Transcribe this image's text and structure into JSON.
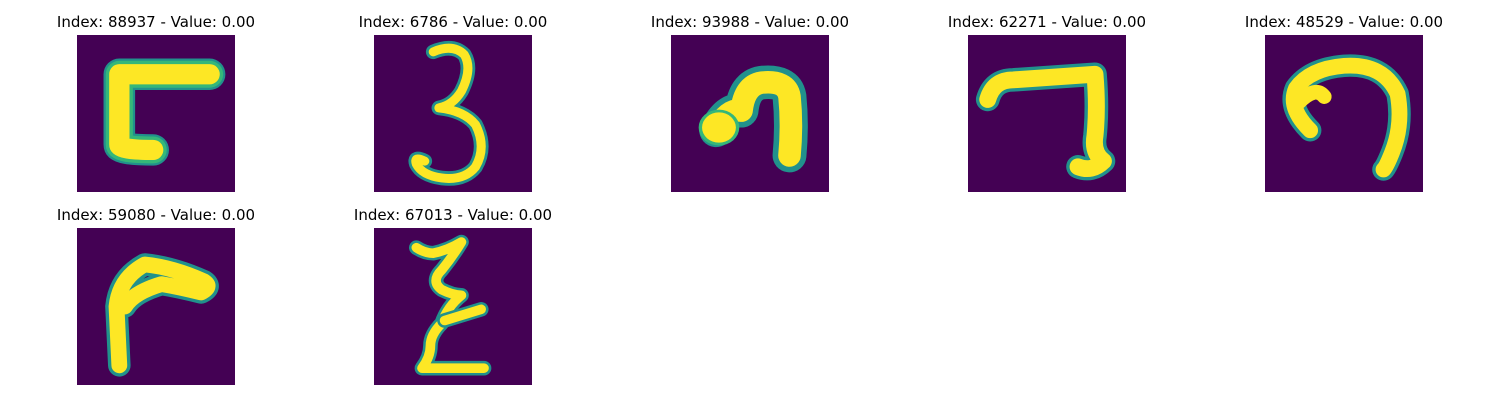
{
  "figure": {
    "panels": [
      {
        "title": "Index: 88937 - Value: 0.00",
        "glyph": "square-hook"
      },
      {
        "title": "Index: 6786 - Value: 0.00",
        "glyph": "digit-three"
      },
      {
        "title": "Index: 93988 - Value: 0.00",
        "glyph": "arch-blob"
      },
      {
        "title": "Index: 62271 - Value: 0.00",
        "glyph": "seven-stroke"
      },
      {
        "title": "Index: 48529 - Value: 0.00",
        "glyph": "round-hook"
      },
      {
        "title": "Index: 59080 - Value: 0.00",
        "glyph": "gamma-stroke"
      },
      {
        "title": "Index: 67013 - Value: 0.00",
        "glyph": "z-squiggle"
      }
    ],
    "colors": {
      "background": "#440154",
      "stroke": "#fde725",
      "halo": "#35b779",
      "halo_outer": "#21918c"
    }
  }
}
